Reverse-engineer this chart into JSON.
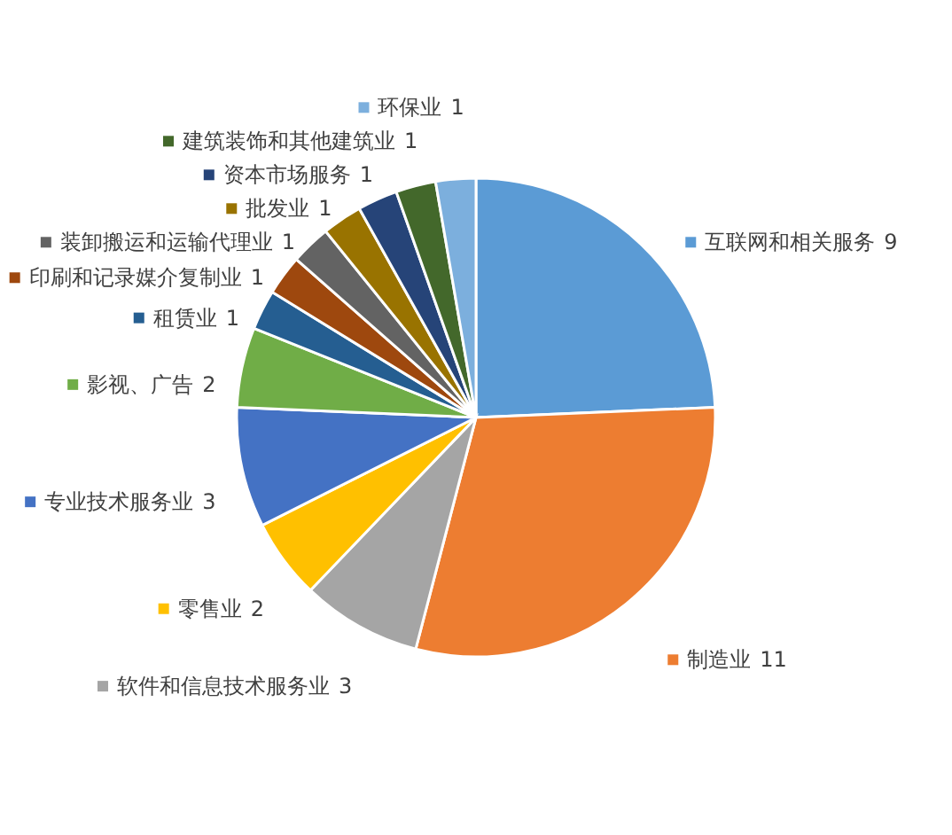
{
  "chart_data": {
    "type": "pie",
    "data_labels": true,
    "legend": "left",
    "categories": [
      "互联网和相关服务",
      "制造业",
      "软件和信息技术服务业",
      "零售业",
      "专业技术服务业",
      "影视、广告",
      "租赁业",
      "印刷和记录媒介复制业",
      "装卸搬运和运输代理业",
      "批发业",
      "资本市场服务",
      "建筑装饰和其他建筑业",
      "环保业"
    ],
    "values": [
      9,
      11,
      3,
      2,
      3,
      2,
      1,
      1,
      1,
      1,
      1,
      1,
      1
    ],
    "colors": [
      "#5b9bd5",
      "#ed7d31",
      "#a5a5a5",
      "#ffc000",
      "#4472c4",
      "#70ad47",
      "#255e91",
      "#9e480e",
      "#636363",
      "#997300",
      "#264478",
      "#43682b",
      "#7cafdd"
    ]
  }
}
